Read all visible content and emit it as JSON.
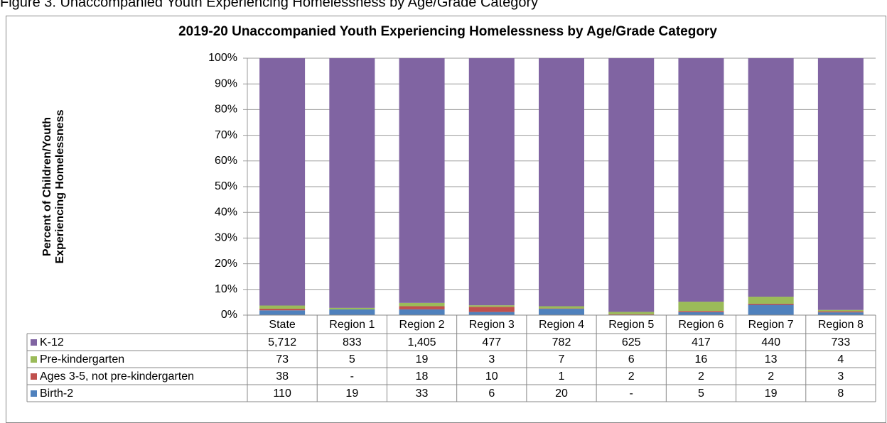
{
  "caption": "Figure 3. Unaccompanied Youth Experiencing Homelessness by Age/Grade Category",
  "chart_data": {
    "type": "stacked_percent_bar",
    "title": "2019-20  Unaccompanied Youth Experiencing Homelessness by Age/Grade Category",
    "ylabel": [
      "Percent of Children/Youth",
      "Experiencing Homelessness"
    ],
    "categories": [
      "State",
      "Region 1",
      "Region 2",
      "Region 3",
      "Region 4",
      "Region 5",
      "Region 6",
      "Region 7",
      "Region 8"
    ],
    "series": [
      {
        "name": "K-12",
        "color": "#8064a2",
        "values": [
          5712,
          833,
          1405,
          477,
          782,
          625,
          417,
          440,
          733
        ],
        "value_labels": [
          "5,712",
          "833",
          "1,405",
          "477",
          "782",
          "625",
          "417",
          "440",
          "733"
        ]
      },
      {
        "name": "Pre-kindergarten",
        "color": "#9bbb59",
        "values": [
          73,
          5,
          19,
          3,
          7,
          6,
          16,
          13,
          4
        ]
      },
      {
        "name": "Ages 3-5, not pre-kindergarten",
        "color": "#c0504d",
        "values": [
          38,
          0,
          18,
          10,
          1,
          2,
          2,
          2,
          3
        ],
        "value_labels": [
          "38",
          "-",
          "18",
          "10",
          "1",
          "2",
          "2",
          "2",
          "3"
        ]
      },
      {
        "name": "Birth-2",
        "color": "#4f81bd",
        "values": [
          110,
          19,
          33,
          6,
          20,
          0,
          5,
          19,
          8
        ],
        "value_labels": [
          "110",
          "19",
          "33",
          "6",
          "20",
          "-",
          "5",
          "19",
          "8"
        ]
      }
    ],
    "ylim": [
      0,
      100
    ],
    "yticks": [
      {
        "value": 0,
        "label": "0%"
      },
      {
        "value": 10,
        "label": "10%"
      },
      {
        "value": 20,
        "label": "20%"
      },
      {
        "value": 30,
        "label": "30%"
      },
      {
        "value": 40,
        "label": "40%"
      },
      {
        "value": 50,
        "label": "50%"
      },
      {
        "value": 60,
        "label": "60%"
      },
      {
        "value": 70,
        "label": "70%"
      },
      {
        "value": 80,
        "label": "80%"
      },
      {
        "value": 90,
        "label": "90%"
      },
      {
        "value": 100,
        "label": "100%"
      }
    ],
    "grid": true
  }
}
